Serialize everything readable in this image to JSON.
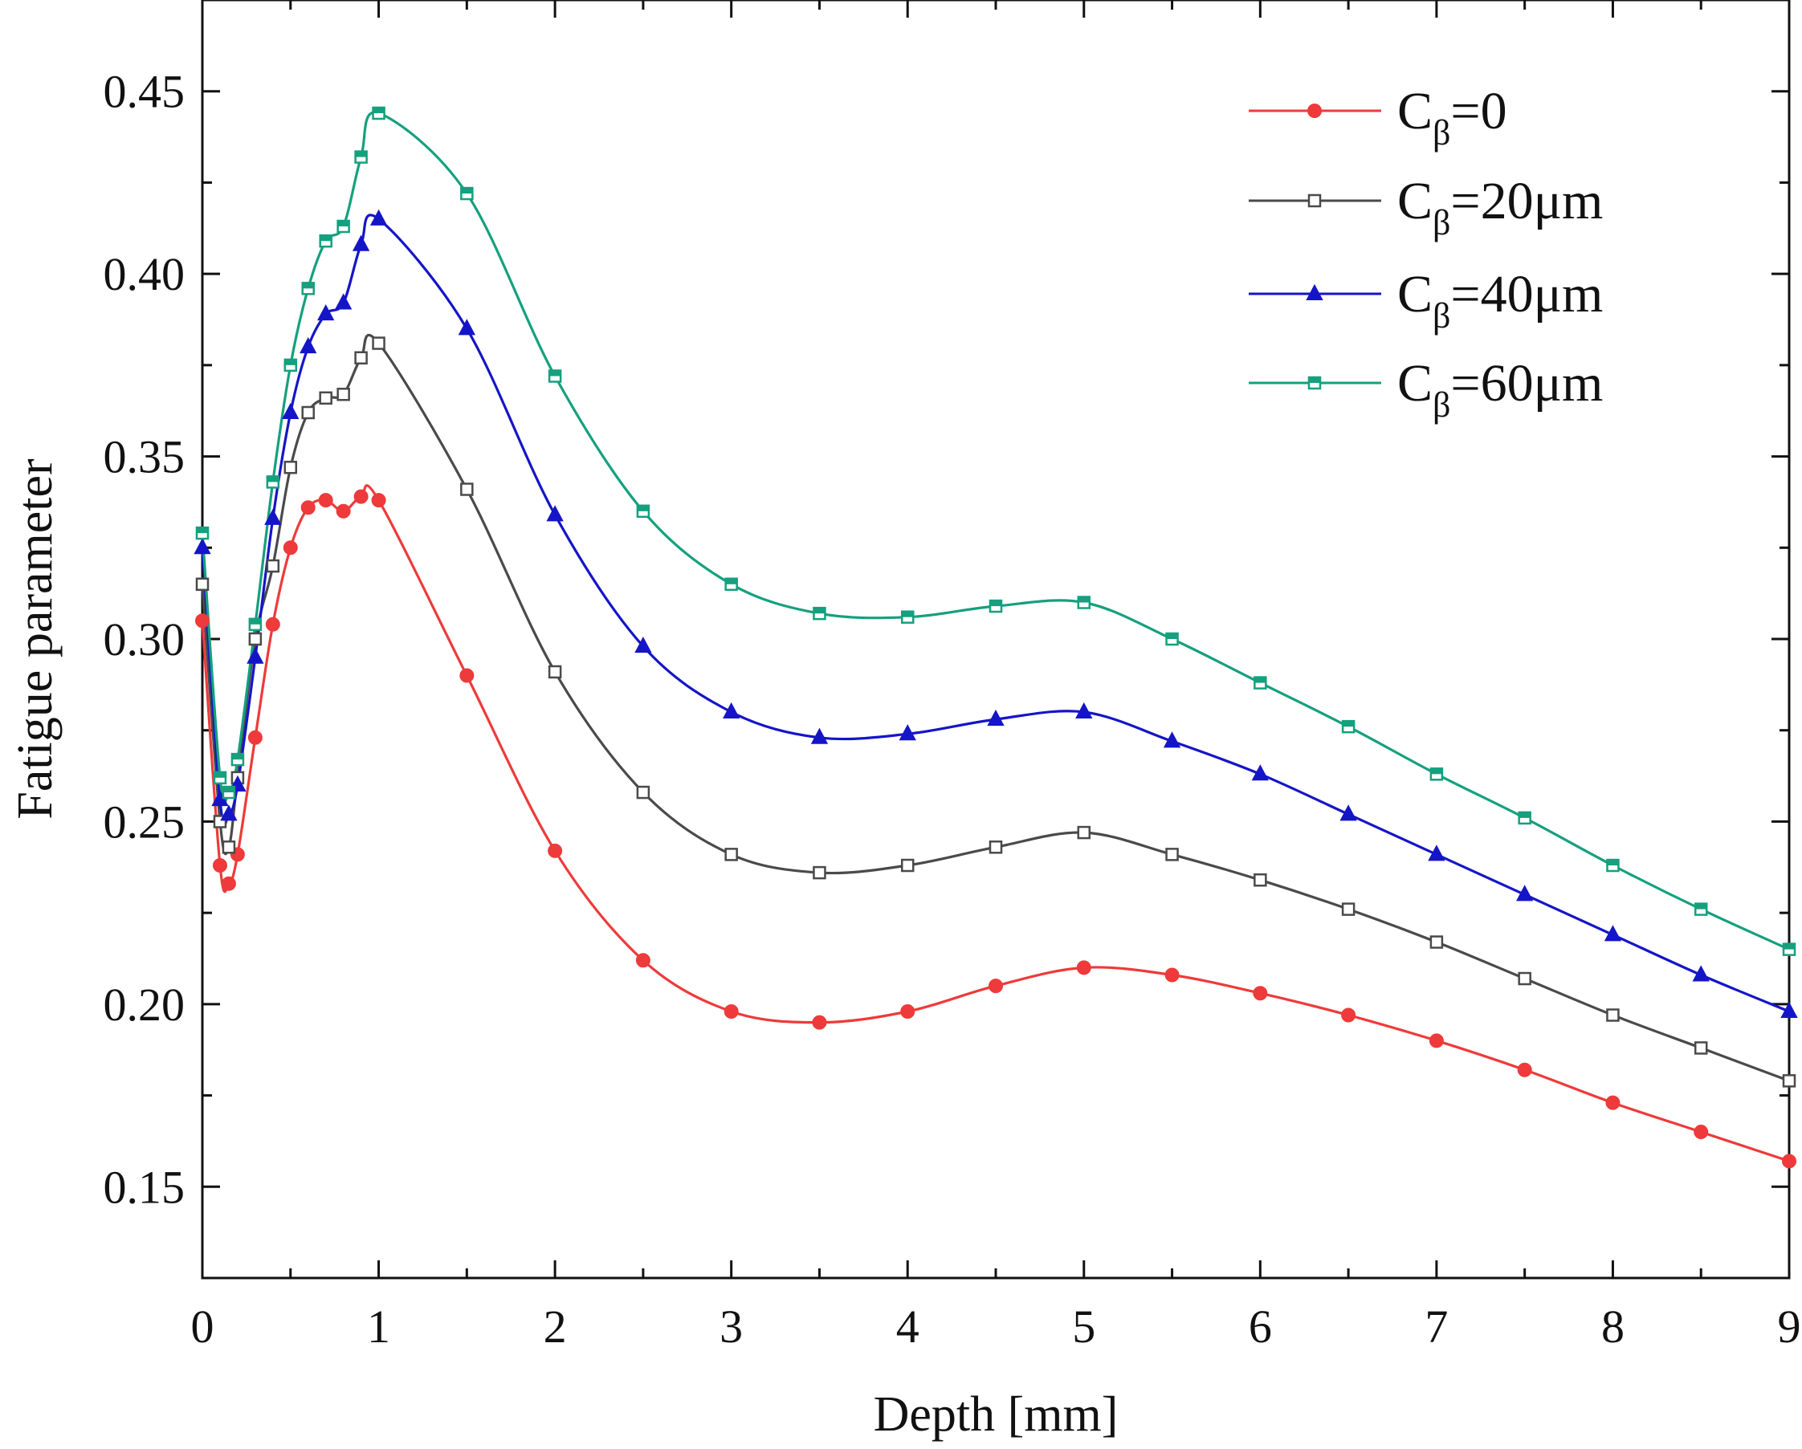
{
  "chart_data": {
    "type": "line",
    "title": "",
    "xlabel": "Depth [mm]",
    "ylabel": "Fatigue parameter",
    "xlim": [
      0,
      9
    ],
    "ylim": [
      0.125,
      0.475
    ],
    "xticks": [
      0,
      1,
      2,
      3,
      4,
      5,
      6,
      7,
      8,
      9
    ],
    "xtick_labels": [
      "0",
      "1",
      "2",
      "3",
      "4",
      "5",
      "6",
      "7",
      "8",
      "9"
    ],
    "yticks": [
      0.15,
      0.2,
      0.25,
      0.3,
      0.35,
      0.4,
      0.45
    ],
    "ytick_labels": [
      "0.15",
      "0.20",
      "0.25",
      "0.30",
      "0.35",
      "0.40",
      "0.45"
    ],
    "grid": false,
    "legend_position": "top-right",
    "series": [
      {
        "name": "Cβ=0",
        "legend_main": "C",
        "legend_sub": "β",
        "legend_rest": "=0",
        "color": "#ee3a3a",
        "marker": "filled-circle",
        "x": [
          0,
          0.1,
          0.15,
          0.2,
          0.3,
          0.4,
          0.5,
          0.6,
          0.7,
          0.8,
          0.9,
          1.0,
          1.5,
          2.0,
          2.5,
          3.0,
          3.5,
          4.0,
          4.5,
          5.0,
          5.5,
          6.0,
          6.5,
          7.0,
          7.5,
          8.0,
          8.5,
          9.0
        ],
        "y": [
          0.305,
          0.238,
          0.233,
          0.241,
          0.273,
          0.304,
          0.325,
          0.336,
          0.338,
          0.335,
          0.339,
          0.338,
          0.29,
          0.242,
          0.212,
          0.198,
          0.195,
          0.198,
          0.205,
          0.21,
          0.208,
          0.203,
          0.197,
          0.19,
          0.182,
          0.173,
          0.165,
          0.157
        ]
      },
      {
        "name": "Cβ=20μm",
        "legend_main": "C",
        "legend_sub": "β",
        "legend_rest": "=20μm",
        "color": "#4a4a4a",
        "marker": "open-square",
        "x": [
          0,
          0.1,
          0.15,
          0.2,
          0.3,
          0.4,
          0.5,
          0.6,
          0.7,
          0.8,
          0.9,
          1.0,
          1.5,
          2.0,
          2.5,
          3.0,
          3.5,
          4.0,
          4.5,
          5.0,
          5.5,
          6.0,
          6.5,
          7.0,
          7.5,
          8.0,
          8.5,
          9.0
        ],
        "y": [
          0.315,
          0.25,
          0.243,
          0.262,
          0.3,
          0.32,
          0.347,
          0.362,
          0.366,
          0.367,
          0.377,
          0.381,
          0.341,
          0.291,
          0.258,
          0.241,
          0.236,
          0.238,
          0.243,
          0.247,
          0.241,
          0.234,
          0.226,
          0.217,
          0.207,
          0.197,
          0.188,
          0.179
        ]
      },
      {
        "name": "Cβ=40μm",
        "legend_main": "C",
        "legend_sub": "β",
        "legend_rest": "=40μm",
        "color": "#1515c8",
        "marker": "filled-triangle",
        "x": [
          0,
          0.1,
          0.15,
          0.2,
          0.3,
          0.4,
          0.5,
          0.6,
          0.7,
          0.8,
          0.9,
          1.0,
          1.5,
          2.0,
          2.5,
          3.0,
          3.5,
          4.0,
          4.5,
          5.0,
          5.5,
          6.0,
          6.5,
          7.0,
          7.5,
          8.0,
          8.5,
          9.0
        ],
        "y": [
          0.325,
          0.256,
          0.252,
          0.26,
          0.295,
          0.333,
          0.362,
          0.38,
          0.389,
          0.392,
          0.408,
          0.415,
          0.385,
          0.334,
          0.298,
          0.28,
          0.273,
          0.274,
          0.278,
          0.28,
          0.272,
          0.263,
          0.252,
          0.241,
          0.23,
          0.219,
          0.208,
          0.198
        ]
      },
      {
        "name": "Cβ=60μm",
        "legend_main": "C",
        "legend_sub": "β",
        "legend_rest": "=60μm",
        "color": "#15a07e",
        "marker": "half-square",
        "x": [
          0,
          0.1,
          0.15,
          0.2,
          0.3,
          0.4,
          0.5,
          0.6,
          0.7,
          0.8,
          0.9,
          1.0,
          1.5,
          2.0,
          2.5,
          3.0,
          3.5,
          4.0,
          4.5,
          5.0,
          5.5,
          6.0,
          6.5,
          7.0,
          7.5,
          8.0,
          8.5,
          9.0
        ],
        "y": [
          0.329,
          0.262,
          0.258,
          0.267,
          0.304,
          0.343,
          0.375,
          0.396,
          0.409,
          0.413,
          0.432,
          0.444,
          0.422,
          0.372,
          0.335,
          0.315,
          0.307,
          0.306,
          0.309,
          0.31,
          0.3,
          0.288,
          0.276,
          0.263,
          0.251,
          0.238,
          0.226,
          0.215
        ]
      }
    ]
  }
}
